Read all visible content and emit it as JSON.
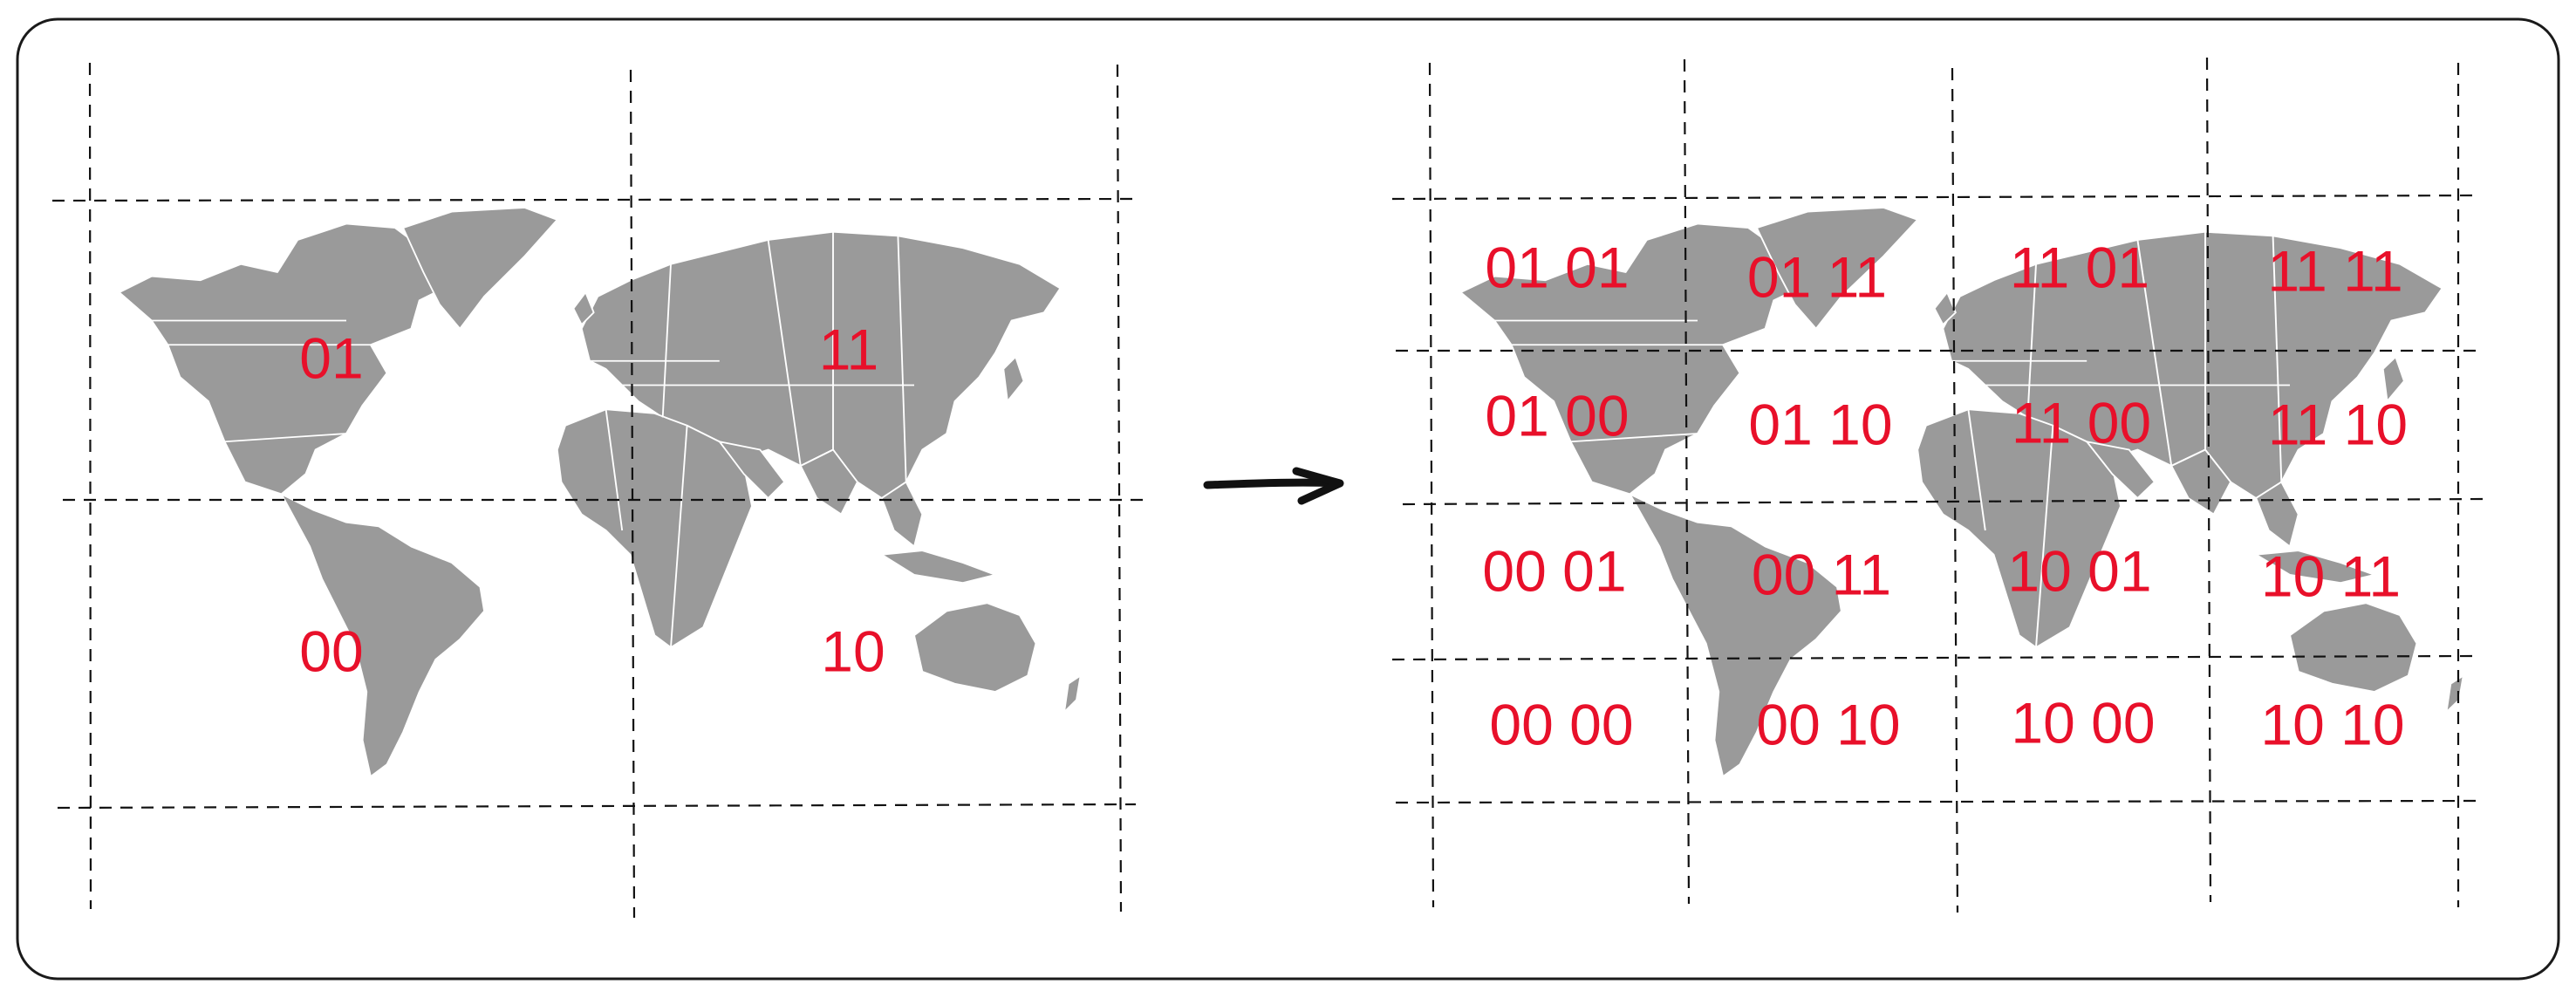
{
  "colors": {
    "land": "#9a9a9a",
    "label": "#e8102a",
    "grid": "#111111",
    "frame": "#1a1a1a"
  },
  "coarse_grid": {
    "labels": [
      "01",
      "11",
      "00",
      "10"
    ]
  },
  "fine_grid": {
    "labels": [
      "01 01",
      "01 11",
      "11 01",
      "11 11",
      "01 00",
      "01 10",
      "11 00",
      "11 10",
      "00 01",
      "00 11",
      "10 01",
      "10 11",
      "00 00",
      "00 10",
      "10 00",
      "10 10"
    ]
  },
  "arrow_icon": "right-arrow"
}
